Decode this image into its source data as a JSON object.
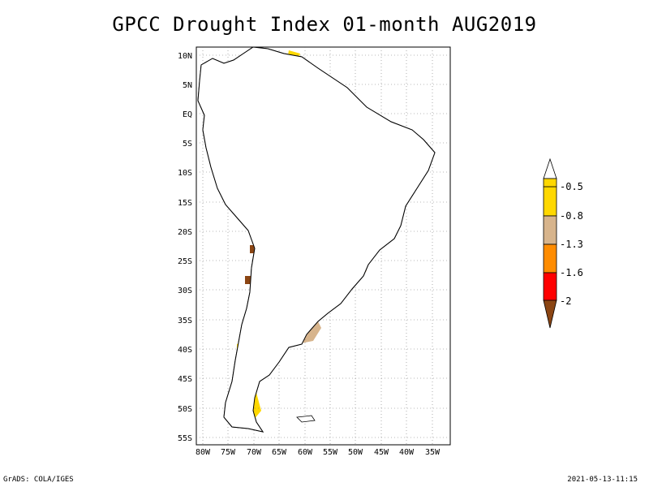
{
  "title": "GPCC Drought Index 01-month AUG2019",
  "map": {
    "region": "South America",
    "lat_range": [
      -56,
      12
    ],
    "lon_range": [
      -81,
      -31
    ],
    "lat_ticks": [
      "10N",
      "5N",
      "EQ",
      "5S",
      "10S",
      "15S",
      "20S",
      "25S",
      "30S",
      "35S",
      "40S",
      "45S",
      "50S",
      "55S"
    ],
    "lon_ticks": [
      "80W",
      "75W",
      "70W",
      "65W",
      "60W",
      "55W",
      "50W",
      "45W",
      "40W",
      "35W"
    ],
    "gridlines": "dotted"
  },
  "legend": {
    "labels": [
      "-0.5",
      "-0.8",
      "-1.3",
      "-1.6",
      "-2"
    ],
    "colors": [
      "#ffffff",
      "#ffd800",
      "#d7b48c",
      "#ff8c00",
      "#ff0000",
      "#8b4513"
    ]
  },
  "footer": {
    "left": "GrADS: COLA/IGES",
    "right": "2021-05-13-11:15"
  }
}
